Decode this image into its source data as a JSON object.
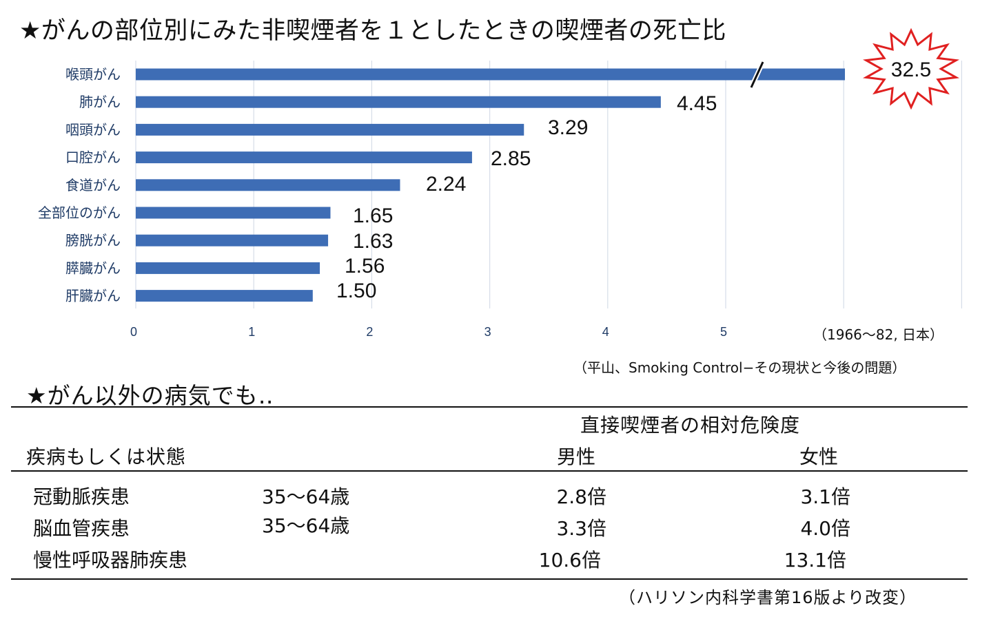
{
  "chart_data": {
    "type": "bar",
    "orientation": "horizontal",
    "title": "★がんの部位別にみた非喫煙者を１としたときの喫煙者の死亡比",
    "categories": [
      "喉頭がん",
      "肺がん",
      "咽頭がん",
      "口腔がん",
      "食道がん",
      "全部位のがん",
      "膀胱がん",
      "膵臓がん",
      "肝臓がん"
    ],
    "values": [
      32.5,
      4.45,
      3.29,
      2.85,
      2.24,
      1.65,
      1.63,
      1.56,
      1.5
    ],
    "value_labels": [
      "32.5",
      "4.45",
      "3.29",
      "2.85",
      "2.24",
      "1.65",
      "1.63",
      "1.56",
      "1.50"
    ],
    "x_ticks": [
      "0",
      "1",
      "2",
      "3",
      "4",
      "5"
    ],
    "xlim": [
      0,
      7
    ],
    "axis_break_category": "喉頭がん",
    "grid": true,
    "bar_color": "#3e6db5",
    "label_color": "#1f3b66",
    "highlight_color": "#e02020"
  },
  "notes": {
    "period": "（1966〜82, 日本）",
    "source1": "（平山、Smoking Control−その現状と今後の問題）",
    "source2": "（ハリソン内科学書第16版より改変）"
  },
  "section2": {
    "title": "★がん以外の病気でも‥",
    "risk_header": "直接喫煙者の相対危険度",
    "col_condition": "疾病もしくは状態",
    "col_male": "男性",
    "col_female": "女性",
    "rows": [
      {
        "name": "冠動脈疾患",
        "age": "35〜64歳",
        "male": "2.8倍",
        "female": "3.1倍"
      },
      {
        "name": "脳血管疾患",
        "age": "35〜64歳",
        "male": "3.3倍",
        "female": "4.0倍"
      },
      {
        "name": "慢性呼吸器肺疾患",
        "age": "",
        "male": "10.6倍",
        "female": "13.1倍"
      }
    ]
  }
}
